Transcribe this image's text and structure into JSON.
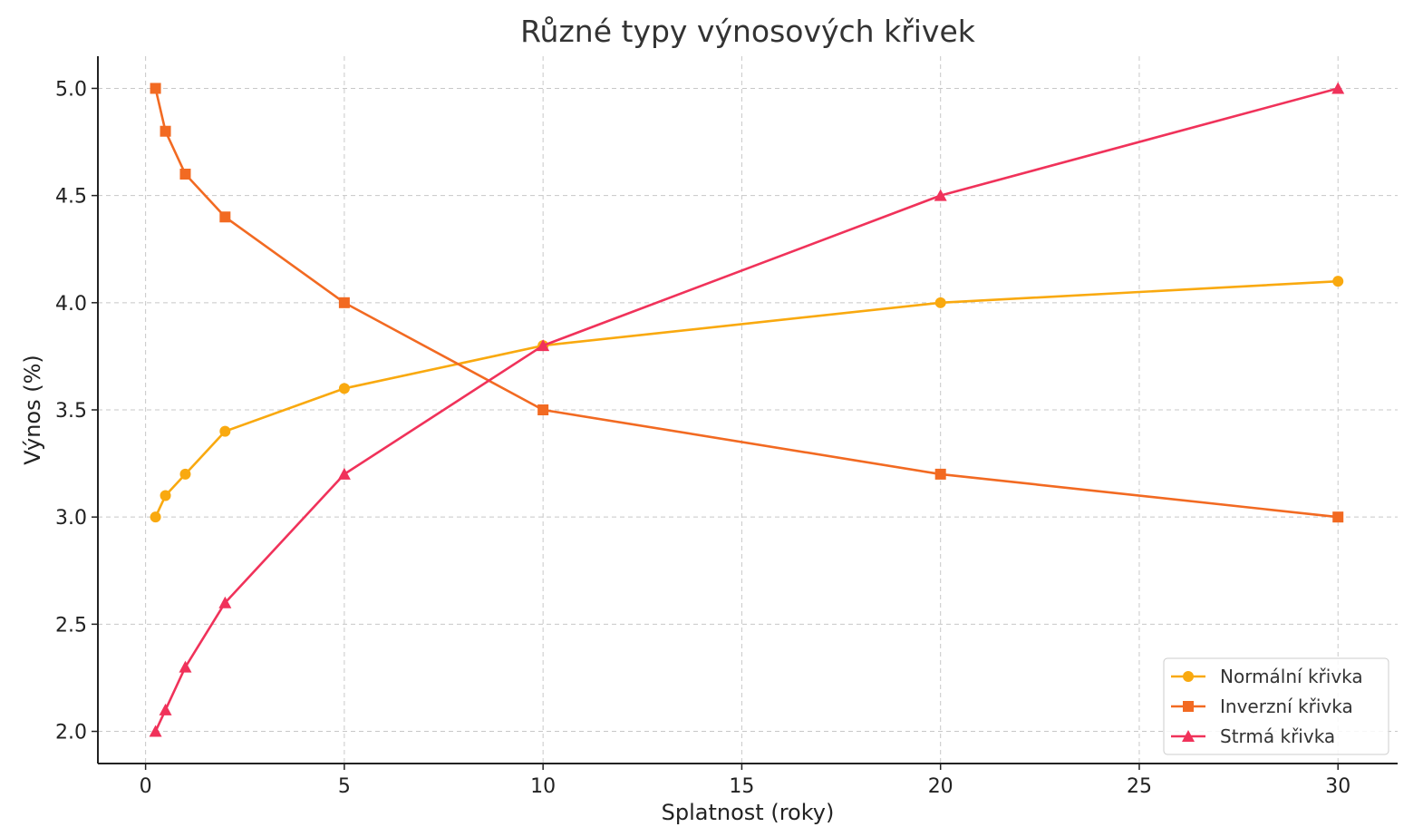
{
  "chart_data": {
    "type": "line",
    "title": "Různé typy výnosových křivek",
    "xlabel": "Splatnost (roky)",
    "ylabel": "Výnos (%)",
    "x": [
      0.25,
      0.5,
      1,
      2,
      5,
      10,
      20,
      30
    ],
    "xlim": [
      -1.2,
      31.5
    ],
    "ylim": [
      1.85,
      5.15
    ],
    "xticks": [
      0,
      5,
      10,
      15,
      20,
      25,
      30
    ],
    "yticks": [
      2.0,
      2.5,
      3.0,
      3.5,
      4.0,
      4.5,
      5.0
    ],
    "xtick_labels": [
      "0",
      "5",
      "10",
      "15",
      "20",
      "25",
      "30"
    ],
    "ytick_labels": [
      "2.0",
      "2.5",
      "3.0",
      "3.5",
      "4.0",
      "4.5",
      "5.0"
    ],
    "grid": true,
    "legend_position": "bottom-right",
    "series": [
      {
        "name": "Normální křivka",
        "values": [
          3.0,
          3.1,
          3.2,
          3.4,
          3.6,
          3.8,
          4.0,
          4.1
        ],
        "color": "#F9A90F",
        "marker": "circle"
      },
      {
        "name": "Inverzní křivka",
        "values": [
          5.0,
          4.8,
          4.6,
          4.4,
          4.0,
          3.5,
          3.2,
          3.0
        ],
        "color": "#F26A22",
        "marker": "square"
      },
      {
        "name": "Strmá křivka",
        "values": [
          2.0,
          2.1,
          2.3,
          2.6,
          3.2,
          3.8,
          4.5,
          5.0
        ],
        "color": "#F0325A",
        "marker": "triangle"
      }
    ]
  }
}
